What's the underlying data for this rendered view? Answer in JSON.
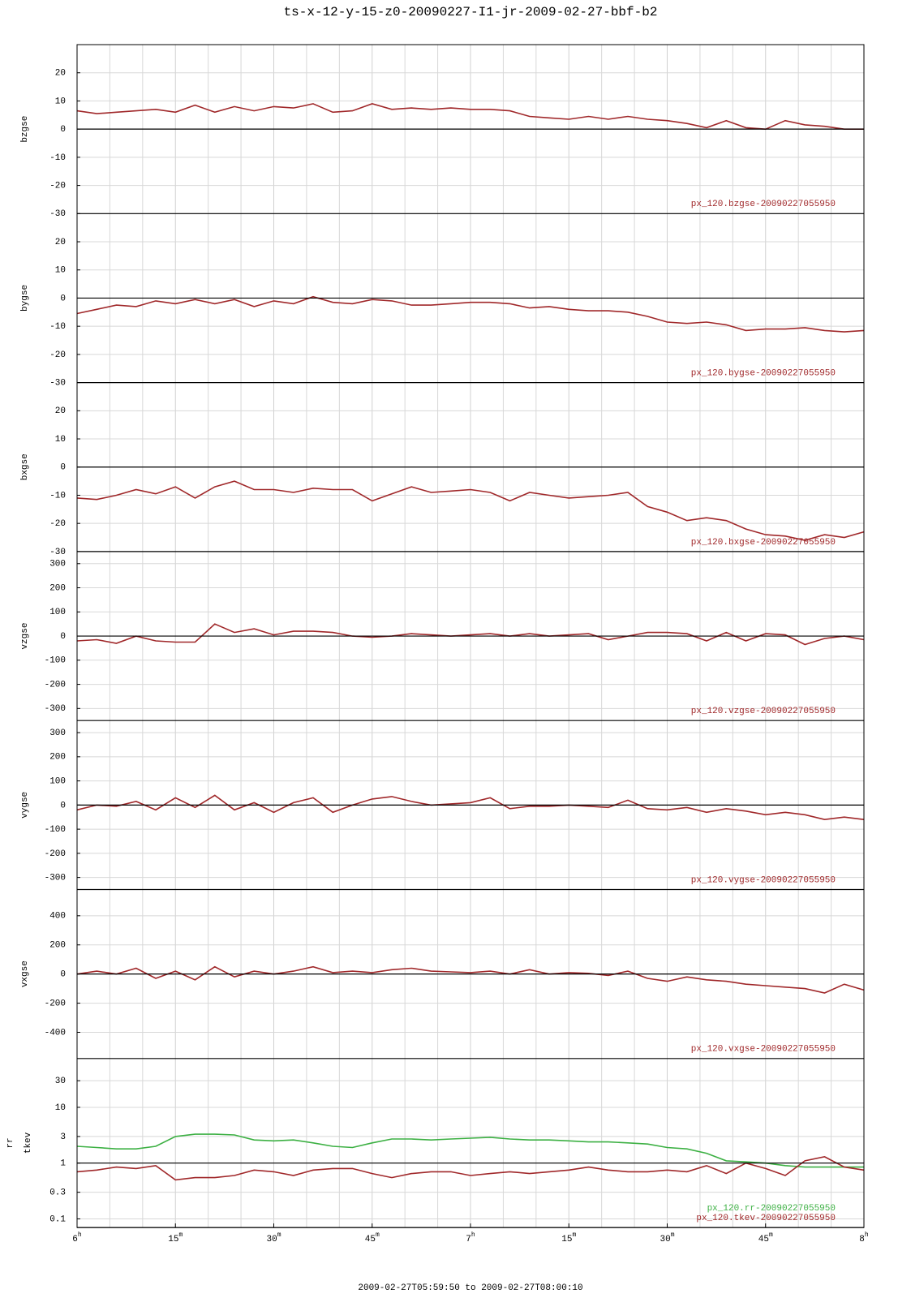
{
  "title": "ts-x-12-y-15-z0-20090227-I1-jr-2009-02-27-bbf-b2",
  "x_axis": {
    "label": "2009-02-27T05:59:50 to 2009-02-27T08:00:10",
    "lim": [
      0,
      120
    ],
    "ticks": [
      {
        "value": 0,
        "label": "6h"
      },
      {
        "value": 15,
        "label": "15m"
      },
      {
        "value": 30,
        "label": "30m"
      },
      {
        "value": 45,
        "label": "45m"
      },
      {
        "value": 60,
        "label": "7h"
      },
      {
        "value": 75,
        "label": "15m"
      },
      {
        "value": 90,
        "label": "30m"
      },
      {
        "value": 105,
        "label": "45m"
      },
      {
        "value": 120,
        "label": "8h"
      }
    ],
    "minor_ticks": [
      5,
      10,
      20,
      25,
      35,
      40,
      50,
      55,
      65,
      70,
      80,
      85,
      95,
      100,
      110,
      115
    ]
  },
  "chart_data": [
    {
      "type": "line",
      "ylabel": "bzgse",
      "ylim": [
        -30,
        30
      ],
      "yticks": [
        -30,
        -20,
        -10,
        0,
        10,
        20
      ],
      "reference_line": 0,
      "x": [
        0,
        3,
        6,
        9,
        12,
        15,
        18,
        21,
        24,
        27,
        30,
        33,
        36,
        39,
        42,
        45,
        48,
        51,
        54,
        57,
        60,
        63,
        66,
        69,
        72,
        75,
        78,
        81,
        84,
        87,
        90,
        93,
        96,
        99,
        102,
        105,
        108,
        111,
        114,
        117,
        120
      ],
      "series": [
        {
          "name": "px_120.bzgse-20090227055950",
          "color": "#a0282a",
          "values": [
            6.5,
            5.5,
            6,
            6.5,
            7,
            6,
            8.5,
            6,
            8,
            6.5,
            8,
            7.5,
            9,
            6,
            6.5,
            9,
            7,
            7.5,
            7,
            7.5,
            7,
            7,
            6.5,
            4.5,
            4,
            3.5,
            4.5,
            3.5,
            4.5,
            3.5,
            3,
            2,
            0.5,
            3,
            0.5,
            0,
            3,
            1.5,
            1,
            0,
            0
          ]
        }
      ]
    },
    {
      "type": "line",
      "ylabel": "bygse",
      "ylim": [
        -30,
        30
      ],
      "yticks": [
        -30,
        -20,
        -10,
        0,
        10,
        20
      ],
      "reference_line": 0,
      "x": [
        0,
        3,
        6,
        9,
        12,
        15,
        18,
        21,
        24,
        27,
        30,
        33,
        36,
        39,
        42,
        45,
        48,
        51,
        54,
        57,
        60,
        63,
        66,
        69,
        72,
        75,
        78,
        81,
        84,
        87,
        90,
        93,
        96,
        99,
        102,
        105,
        108,
        111,
        114,
        117,
        120
      ],
      "series": [
        {
          "name": "px_120.bygse-20090227055950",
          "color": "#a0282a",
          "values": [
            -5.5,
            -4,
            -2.5,
            -3,
            -1,
            -2,
            -0.5,
            -2,
            -0.5,
            -3,
            -1,
            -2,
            0.5,
            -1.5,
            -2,
            -0.5,
            -1,
            -2.5,
            -2.5,
            -2,
            -1.5,
            -1.5,
            -2,
            -3.5,
            -3,
            -4,
            -4.5,
            -4.5,
            -5,
            -6.5,
            -8.5,
            -9,
            -8.5,
            -9.5,
            -11.5,
            -11,
            -11,
            -10.5,
            -11.5,
            -12,
            -11.5
          ]
        }
      ]
    },
    {
      "type": "line",
      "ylabel": "bxgse",
      "ylim": [
        -30,
        30
      ],
      "yticks": [
        -30,
        -20,
        -10,
        0,
        10,
        20
      ],
      "reference_line": 0,
      "x": [
        0,
        3,
        6,
        9,
        12,
        15,
        18,
        21,
        24,
        27,
        30,
        33,
        36,
        39,
        42,
        45,
        48,
        51,
        54,
        57,
        60,
        63,
        66,
        69,
        72,
        75,
        78,
        81,
        84,
        87,
        90,
        93,
        96,
        99,
        102,
        105,
        108,
        111,
        114,
        117,
        120
      ],
      "series": [
        {
          "name": "px_120.bxgse-20090227055950",
          "color": "#a0282a",
          "values": [
            -11,
            -11.5,
            -10,
            -8,
            -9.5,
            -7,
            -11,
            -7,
            -5,
            -8,
            -8,
            -9,
            -7.5,
            -8,
            -8,
            -12,
            -9.5,
            -7,
            -9,
            -8.5,
            -8,
            -9,
            -12,
            -9,
            -10,
            -11,
            -10.5,
            -10,
            -9,
            -14,
            -16,
            -19,
            -18,
            -19,
            -22,
            -24,
            -24.5,
            -26,
            -24,
            -25,
            -23
          ]
        }
      ]
    },
    {
      "type": "line",
      "ylabel": "vzgse",
      "ylim": [
        -350,
        350
      ],
      "yticks": [
        -300,
        -200,
        -100,
        0,
        100,
        200,
        300
      ],
      "reference_line": 0,
      "x": [
        0,
        3,
        6,
        9,
        12,
        15,
        18,
        21,
        24,
        27,
        30,
        33,
        36,
        39,
        42,
        45,
        48,
        51,
        54,
        57,
        60,
        63,
        66,
        69,
        72,
        75,
        78,
        81,
        84,
        87,
        90,
        93,
        96,
        99,
        102,
        105,
        108,
        111,
        114,
        117,
        120
      ],
      "series": [
        {
          "name": "px_120.vzgse-20090227055950",
          "color": "#a0282a",
          "values": [
            -20,
            -15,
            -30,
            0,
            -20,
            -25,
            -25,
            50,
            15,
            30,
            5,
            20,
            20,
            15,
            0,
            -5,
            0,
            10,
            5,
            0,
            5,
            10,
            0,
            10,
            0,
            5,
            10,
            -15,
            0,
            15,
            15,
            10,
            -20,
            15,
            -20,
            10,
            5,
            -35,
            -10,
            0,
            -15
          ]
        }
      ]
    },
    {
      "type": "line",
      "ylabel": "vygse",
      "ylim": [
        -350,
        350
      ],
      "yticks": [
        -300,
        -200,
        -100,
        0,
        100,
        200,
        300
      ],
      "reference_line": 0,
      "x": [
        0,
        3,
        6,
        9,
        12,
        15,
        18,
        21,
        24,
        27,
        30,
        33,
        36,
        39,
        42,
        45,
        48,
        51,
        54,
        57,
        60,
        63,
        66,
        69,
        72,
        75,
        78,
        81,
        84,
        87,
        90,
        93,
        96,
        99,
        102,
        105,
        108,
        111,
        114,
        117,
        120
      ],
      "series": [
        {
          "name": "px_120.vygse-20090227055950",
          "color": "#a0282a",
          "values": [
            -20,
            0,
            -5,
            15,
            -20,
            30,
            -10,
            40,
            -20,
            10,
            -30,
            10,
            30,
            -30,
            0,
            25,
            35,
            15,
            0,
            5,
            10,
            30,
            -15,
            -5,
            -5,
            0,
            -5,
            -10,
            20,
            -15,
            -20,
            -10,
            -30,
            -15,
            -25,
            -40,
            -30,
            -40,
            -60,
            -50,
            -60
          ]
        }
      ]
    },
    {
      "type": "line",
      "ylabel": "vxgse",
      "ylim": [
        -580,
        580
      ],
      "yticks": [
        -400,
        -200,
        0,
        200,
        400
      ],
      "reference_line": 0,
      "x": [
        0,
        3,
        6,
        9,
        12,
        15,
        18,
        21,
        24,
        27,
        30,
        33,
        36,
        39,
        42,
        45,
        48,
        51,
        54,
        57,
        60,
        63,
        66,
        69,
        72,
        75,
        78,
        81,
        84,
        87,
        90,
        93,
        96,
        99,
        102,
        105,
        108,
        111,
        114,
        117,
        120
      ],
      "series": [
        {
          "name": "px_120.vxgse-20090227055950",
          "color": "#a0282a",
          "values": [
            0,
            20,
            0,
            40,
            -30,
            20,
            -40,
            50,
            -20,
            20,
            0,
            20,
            50,
            10,
            20,
            10,
            30,
            40,
            20,
            15,
            10,
            20,
            0,
            30,
            0,
            10,
            5,
            -10,
            20,
            -30,
            -50,
            -20,
            -40,
            -50,
            -70,
            -80,
            -90,
            -100,
            -130,
            -70,
            -110
          ]
        }
      ]
    },
    {
      "type": "line",
      "ylabel": [
        "rr",
        "tkev"
      ],
      "log_scale": true,
      "ylim": [
        0.07,
        75
      ],
      "yticks": [
        0.1,
        0.3,
        1,
        3,
        10,
        30
      ],
      "reference_line": 1,
      "x": [
        0,
        3,
        6,
        9,
        12,
        15,
        18,
        21,
        24,
        27,
        30,
        33,
        36,
        39,
        42,
        45,
        48,
        51,
        54,
        57,
        60,
        63,
        66,
        69,
        72,
        75,
        78,
        81,
        84,
        87,
        90,
        93,
        96,
        99,
        102,
        105,
        108,
        111,
        114,
        117,
        120
      ],
      "series": [
        {
          "name": "px_120.rr-20090227055950",
          "color": "#3cb043",
          "values": [
            2.0,
            1.9,
            1.8,
            1.8,
            2.0,
            3.0,
            3.3,
            3.3,
            3.2,
            2.6,
            2.5,
            2.6,
            2.3,
            2.0,
            1.9,
            2.3,
            2.7,
            2.7,
            2.6,
            2.7,
            2.8,
            2.9,
            2.7,
            2.6,
            2.6,
            2.5,
            2.4,
            2.4,
            2.3,
            2.2,
            1.9,
            1.8,
            1.5,
            1.1,
            1.05,
            1.0,
            0.9,
            0.85,
            0.85,
            0.85,
            0.85
          ]
        },
        {
          "name": "px_120.tkev-20090227055950",
          "color": "#a0282a",
          "values": [
            0.7,
            0.75,
            0.85,
            0.8,
            0.9,
            0.5,
            0.55,
            0.55,
            0.6,
            0.75,
            0.7,
            0.6,
            0.75,
            0.8,
            0.8,
            0.65,
            0.55,
            0.65,
            0.7,
            0.7,
            0.6,
            0.65,
            0.7,
            0.65,
            0.7,
            0.75,
            0.85,
            0.75,
            0.7,
            0.7,
            0.75,
            0.7,
            0.9,
            0.65,
            1.0,
            0.8,
            0.6,
            1.1,
            1.3,
            0.85,
            0.75
          ]
        }
      ]
    }
  ]
}
